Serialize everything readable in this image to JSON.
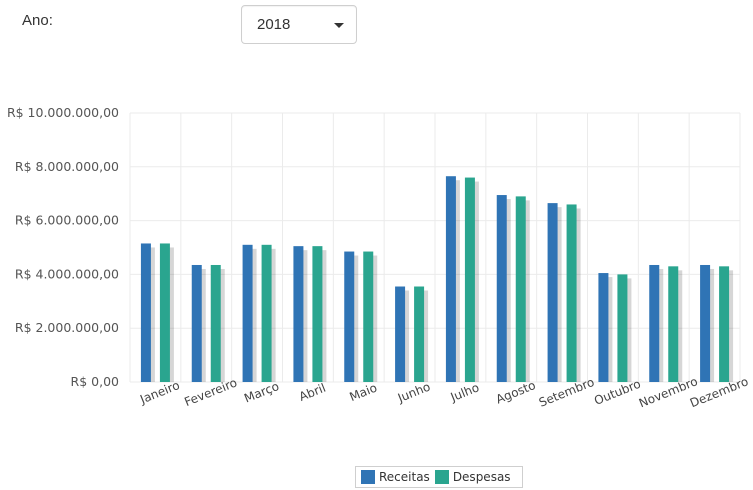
{
  "filter": {
    "label": "Ano:",
    "selected": "2018"
  },
  "icons": {
    "dropdown": "caret-down-icon"
  },
  "colors": {
    "receitas": "#2f74b5",
    "despesas": "#2aa58f",
    "grid": "#ebebeb"
  },
  "chart_data": {
    "type": "bar",
    "categories": [
      "Janeiro",
      "Fevereiro",
      "Março",
      "Abril",
      "Maio",
      "Junho",
      "Julho",
      "Agosto",
      "Setembro",
      "Outubro",
      "Novembro",
      "Dezembro"
    ],
    "series": [
      {
        "name": "Receitas",
        "values": [
          5150000,
          4350000,
          5100000,
          5050000,
          4850000,
          3550000,
          7650000,
          6950000,
          6650000,
          4050000,
          4350000,
          4350000
        ]
      },
      {
        "name": "Despesas",
        "values": [
          5150000,
          4350000,
          5100000,
          5050000,
          4850000,
          3550000,
          7600000,
          6900000,
          6600000,
          4000000,
          4300000,
          4300000
        ]
      }
    ],
    "yticks": [
      "R$ 0,00",
      "R$ 2.000.000,00",
      "R$ 4.000.000,00",
      "R$ 6.000.000,00",
      "R$ 8.000.000,00",
      "R$ 10.000.000,00"
    ],
    "ylim": [
      0,
      10000000
    ],
    "grid": true,
    "legend": "bottom-center"
  }
}
